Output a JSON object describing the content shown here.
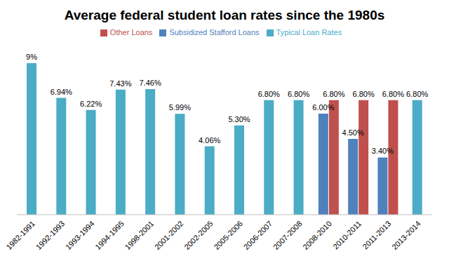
{
  "chart_data": {
    "type": "bar",
    "title": "Average federal student loan rates since the 1980s",
    "categories": [
      "1982-1991",
      "1992-1993",
      "1993-1994",
      "1994-1995",
      "1998-2001",
      "2001-2002",
      "2002-2005",
      "2005-2006",
      "2006-2007",
      "2007-2008",
      "2008-2010",
      "2010-2011",
      "2011-2013",
      "2013-2014"
    ],
    "series": [
      {
        "name": "Typical Loan Rates",
        "color": "#4bacc6",
        "values": [
          9,
          6.94,
          6.22,
          7.43,
          7.46,
          5.99,
          4.06,
          5.3,
          6.8,
          6.8,
          null,
          null,
          null,
          6.8
        ],
        "value_labels": [
          "9%",
          "6.94%",
          "6.22%",
          "7.43%",
          "7.46%",
          "5.99%",
          "4.06%",
          "5.30%",
          "6.80%",
          "6.80%",
          null,
          null,
          null,
          "6.80%"
        ]
      },
      {
        "name": "Subsidized Stafford Loans",
        "color": "#4f81bd",
        "values": [
          null,
          null,
          null,
          null,
          null,
          null,
          null,
          null,
          null,
          null,
          6,
          4.5,
          3.4,
          null
        ],
        "value_labels": [
          null,
          null,
          null,
          null,
          null,
          null,
          null,
          null,
          null,
          null,
          "6.00%",
          "4.50%",
          "3.40%",
          null
        ]
      },
      {
        "name": "Other Loans",
        "color": "#c0504d",
        "values": [
          null,
          null,
          null,
          null,
          null,
          null,
          null,
          null,
          null,
          null,
          6.8,
          6.8,
          6.8,
          null
        ],
        "value_labels": [
          null,
          null,
          null,
          null,
          null,
          null,
          null,
          null,
          null,
          null,
          "6.80%",
          "6.80%",
          "6.80%",
          null
        ]
      }
    ],
    "ylim": [
      0,
      10
    ],
    "tick_labels": "x",
    "data_labels": true,
    "legend": "top",
    "grid": false
  }
}
